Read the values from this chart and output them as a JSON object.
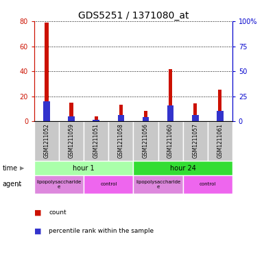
{
  "title": "GDS5251 / 1371080_at",
  "samples": [
    "GSM1211052",
    "GSM1211059",
    "GSM1211051",
    "GSM1211058",
    "GSM1211056",
    "GSM1211060",
    "GSM1211057",
    "GSM1211061"
  ],
  "count_values": [
    79,
    15,
    4,
    13,
    8,
    42,
    14,
    25
  ],
  "percentile_values": [
    20,
    5,
    1.5,
    6,
    4,
    16,
    6,
    10
  ],
  "ylim_left": [
    0,
    80
  ],
  "ylim_right": [
    0,
    100
  ],
  "yticks_left": [
    0,
    20,
    40,
    60,
    80
  ],
  "yticks_right": [
    0,
    25,
    50,
    75,
    100
  ],
  "time_labels": [
    "hour 1",
    "hour 24"
  ],
  "agent_labels": [
    "lipopolysaccharide\ne",
    "control",
    "lipopolysaccharide\ne",
    "control"
  ],
  "time_color_1": "#AAFFAA",
  "time_color_2": "#33DD33",
  "agent_color_lps": "#DD88DD",
  "agent_color_ctrl": "#EE66EE",
  "bar_color_count": "#CC1100",
  "bar_color_pct": "#3333CC",
  "sample_bg_color": "#C8C8C8",
  "bar_width": 0.15,
  "title_fontsize": 10,
  "tick_fontsize": 7,
  "label_fontsize": 7
}
